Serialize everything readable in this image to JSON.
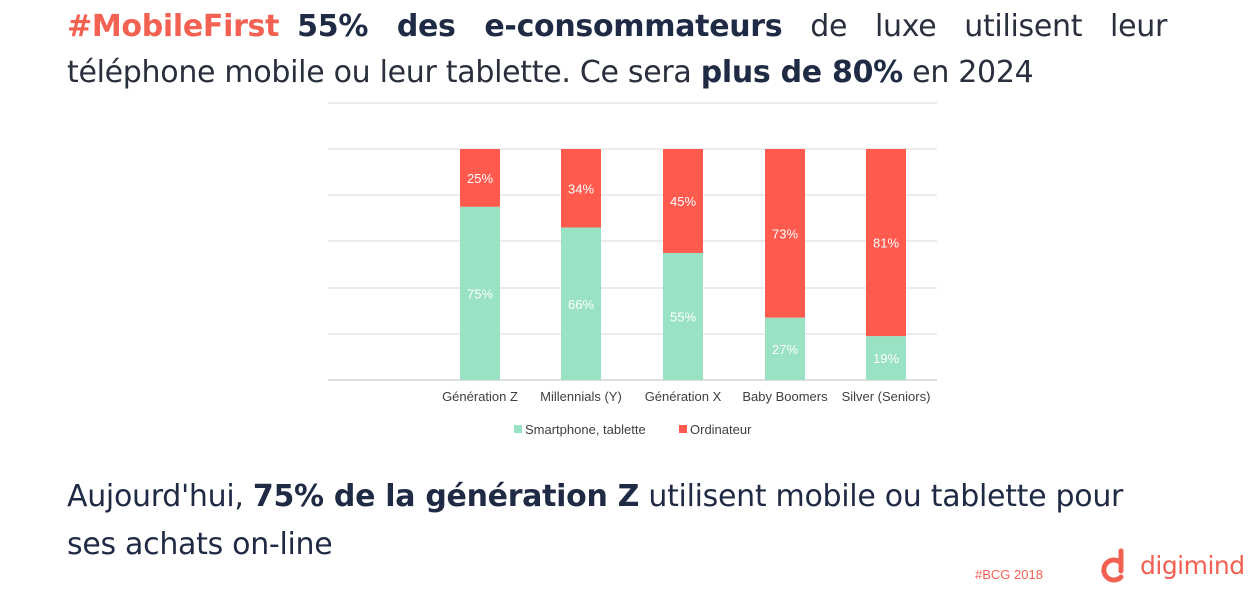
{
  "headline": {
    "tag": "#MobileFirst",
    "bold1": "55% des e-consommateurs",
    "text1": " de luxe utilisent leur téléphone mobile ou leur tablette. Ce sera ",
    "bold2": "plus de 80%",
    "text2": " en 2024"
  },
  "bottom": {
    "text1": "Aujourd'hui, ",
    "bold": "75% de la génération Z",
    "text2": " utilisent mobile ou tablette pour ses achats on-line"
  },
  "source": "#BCG 2018",
  "brand": {
    "name": "digimind",
    "logo": "digimind-logo-icon",
    "color": "#f26152"
  },
  "chart_data": {
    "type": "bar",
    "stacked": true,
    "categories": [
      "Génération Z",
      "Millennials (Y)",
      "Génération X",
      "Baby Boomers",
      "Silver (Seniors)"
    ],
    "series": [
      {
        "name": "Smartphone, tablette",
        "color": "#99e2c3",
        "values": [
          75,
          66,
          55,
          27,
          19
        ],
        "labels": [
          "75%",
          "66%",
          "55%",
          "27%",
          "19%"
        ]
      },
      {
        "name": "Ordinateur",
        "color": "#ff5a4e",
        "values": [
          25,
          34,
          45,
          73,
          81
        ],
        "labels": [
          "25%",
          "34%",
          "45%",
          "73%",
          "81%"
        ]
      }
    ],
    "ylim": [
      0,
      100
    ],
    "grid": true,
    "legend": "bottom"
  }
}
